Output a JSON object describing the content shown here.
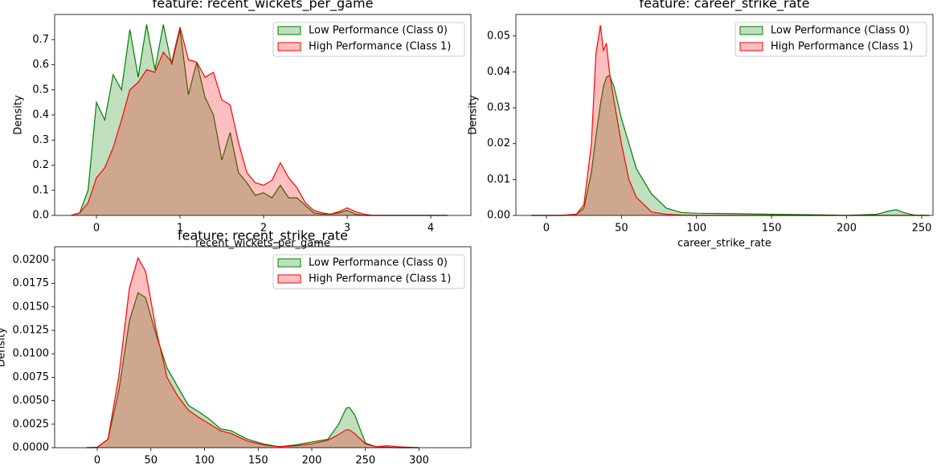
{
  "chart_data": [
    {
      "type": "area",
      "title": "feature: recent_wickets_per_game",
      "xlabel": "recent_wickets_per_game",
      "ylabel": "Density",
      "x": [
        -0.3,
        -0.2,
        -0.1,
        0,
        0.1,
        0.2,
        0.3,
        0.4,
        0.5,
        0.6,
        0.7,
        0.8,
        0.9,
        1.0,
        1.1,
        1.2,
        1.3,
        1.4,
        1.5,
        1.6,
        1.7,
        1.8,
        1.9,
        2.0,
        2.1,
        2.2,
        2.3,
        2.4,
        2.5,
        2.6,
        2.7,
        2.8,
        2.9,
        3.0,
        3.1,
        3.2,
        3.3,
        3.6,
        4.2
      ],
      "series": [
        {
          "name": "Low Performance (Class 0)",
          "color": "#008000",
          "values": [
            0,
            0.01,
            0.1,
            0.45,
            0.38,
            0.56,
            0.5,
            0.74,
            0.55,
            0.76,
            0.58,
            0.76,
            0.6,
            0.74,
            0.48,
            0.61,
            0.47,
            0.4,
            0.22,
            0.33,
            0.17,
            0.13,
            0.08,
            0.09,
            0.07,
            0.12,
            0.07,
            0.07,
            0.04,
            0.01,
            0.005,
            0.005,
            0.01,
            0.02,
            0.005,
            0,
            0,
            0,
            0
          ]
        },
        {
          "name": "High Performance (Class 1)",
          "color": "#ff0000",
          "values": [
            0,
            0.01,
            0.05,
            0.15,
            0.19,
            0.27,
            0.38,
            0.5,
            0.53,
            0.58,
            0.57,
            0.65,
            0.61,
            0.75,
            0.62,
            0.61,
            0.55,
            0.57,
            0.46,
            0.44,
            0.29,
            0.17,
            0.13,
            0.12,
            0.14,
            0.21,
            0.15,
            0.11,
            0.05,
            0.02,
            0.01,
            0.005,
            0.015,
            0.03,
            0.015,
            0.005,
            0,
            0,
            0
          ]
        }
      ],
      "xlim": [
        -0.5,
        4.48
      ],
      "xticks": [
        0,
        1,
        2,
        3,
        4
      ],
      "ylim": [
        0,
        0.8
      ],
      "yticks": [
        {
          "value": 0,
          "label": "0.0"
        },
        0.1,
        0.2,
        0.3,
        0.4,
        0.5,
        0.6,
        0.7
      ],
      "legend": "upper right"
    },
    {
      "type": "area",
      "title": "feature: career_strike_rate",
      "xlabel": "career_strike_rate",
      "ylabel": "Density",
      "x": [
        -10,
        0,
        10,
        20,
        25,
        30,
        33,
        36,
        38,
        40,
        42,
        45,
        50,
        55,
        60,
        70,
        80,
        90,
        100,
        125,
        150,
        175,
        200,
        220,
        228,
        233,
        238,
        245,
        255
      ],
      "series": [
        {
          "name": "Low Performance (Class 0)",
          "color": "#008000",
          "values": [
            0,
            0,
            0,
            0.0003,
            0.002,
            0.012,
            0.022,
            0.031,
            0.036,
            0.0385,
            0.039,
            0.036,
            0.027,
            0.02,
            0.013,
            0.006,
            0.002,
            0.0008,
            0.0006,
            0.0005,
            0.0003,
            0.0002,
            0,
            0.0003,
            0.0012,
            0.0016,
            0.0008,
            0.0001,
            0
          ]
        },
        {
          "name": "High Performance (Class 1)",
          "color": "#ff0000",
          "values": [
            0,
            0,
            0,
            0.0003,
            0.003,
            0.02,
            0.045,
            0.053,
            0.046,
            0.048,
            0.04,
            0.032,
            0.02,
            0.01,
            0.005,
            0.001,
            0.0003,
            0.0001,
            0,
            0,
            0,
            0,
            0,
            0,
            0,
            0,
            0,
            0,
            0
          ]
        }
      ],
      "xlim": [
        -20.3,
        257.5
      ],
      "xticks": [
        0,
        50,
        100,
        150,
        200,
        250
      ],
      "ylim": [
        0,
        0.056
      ],
      "yticks": [
        {
          "value": 0,
          "label": "0.00"
        },
        0.01,
        0.02,
        0.03,
        0.04,
        0.05
      ],
      "legend": "upper right"
    },
    {
      "type": "area",
      "title": "feature: recent_strike_rate",
      "ylabel": "Density",
      "x": [
        -10,
        0,
        10,
        20,
        30,
        38,
        45,
        55,
        65,
        75,
        85,
        95,
        105,
        115,
        125,
        140,
        155,
        170,
        185,
        200,
        215,
        225,
        232,
        235,
        240,
        250,
        260,
        270,
        280,
        300
      ],
      "series": [
        {
          "name": "Low Performance (Class 0)",
          "color": "#008000",
          "values": [
            0,
            5e-05,
            0.0009,
            0.006,
            0.0135,
            0.0165,
            0.016,
            0.012,
            0.0085,
            0.0065,
            0.0045,
            0.0038,
            0.003,
            0.002,
            0.0018,
            0.0009,
            0.0004,
            0.0001,
            0.0003,
            0.0006,
            0.0009,
            0.0025,
            0.0042,
            0.0043,
            0.0035,
            0.0005,
            0.0001,
            5e-05,
            0,
            0
          ]
        },
        {
          "name": "High Performance (Class 1)",
          "color": "#ff0000",
          "values": [
            0,
            5e-05,
            0.0009,
            0.0075,
            0.017,
            0.0202,
            0.0188,
            0.0125,
            0.0075,
            0.0055,
            0.004,
            0.0032,
            0.0025,
            0.0018,
            0.0015,
            0.0007,
            0.0003,
            0.0001,
            0.0002,
            0.0004,
            0.0008,
            0.0014,
            0.0019,
            0.0019,
            0.0015,
            0.0004,
            0.0001,
            0.0002,
            0.0001,
            0
          ]
        }
      ],
      "xlim": [
        -39.7,
        348.3
      ],
      "xticks": [
        0,
        50,
        100,
        150,
        200,
        250,
        300
      ],
      "ylim": [
        0,
        0.0214
      ],
      "yticks": [
        {
          "value": 0,
          "label": "0.0000"
        },
        {
          "value": 0.0025,
          "label": "0.0025"
        },
        {
          "value": 0.005,
          "label": "0.0050"
        },
        {
          "value": 0.0075,
          "label": "0.0075"
        },
        {
          "value": 0.01,
          "label": "0.0100"
        },
        {
          "value": 0.0125,
          "label": "0.0125"
        },
        {
          "value": 0.015,
          "label": "0.0150"
        },
        {
          "value": 0.0175,
          "label": "0.0175"
        },
        {
          "value": 0.02,
          "label": "0.0200"
        }
      ],
      "legend": "upper right"
    }
  ]
}
